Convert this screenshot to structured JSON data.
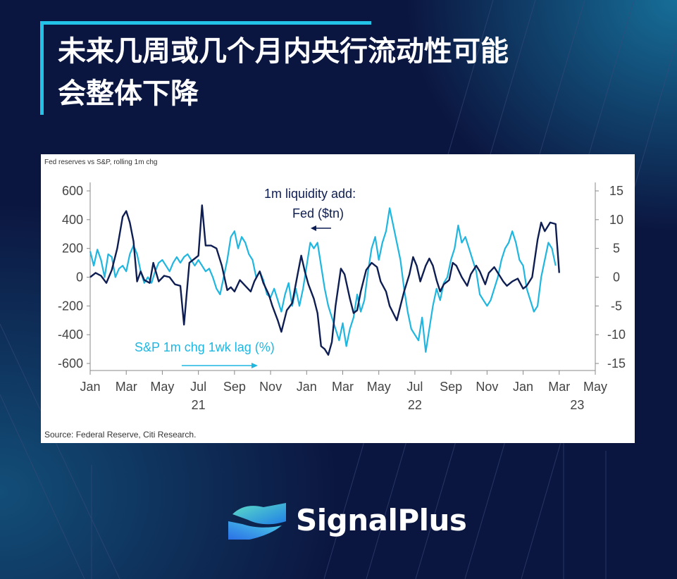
{
  "headline": {
    "line1": "未来几周或几个月内央行流动性可能",
    "line2": "会整体下降"
  },
  "brand": {
    "name": "SignalPlus",
    "colors": {
      "background": "#0b1640",
      "accent": "#22c3e6"
    }
  },
  "chart_data": {
    "type": "line",
    "title": "Fed reserves vs S&P, rolling 1m chg",
    "source": "Source: Federal Reserve, Citi Research.",
    "x_ticks": [
      "Jan",
      "Mar",
      "May",
      "Jul",
      "Sep",
      "Nov",
      "Jan",
      "Mar",
      "May",
      "Jul",
      "Sep",
      "Nov",
      "Jan",
      "Mar",
      "May"
    ],
    "year_labels": [
      {
        "label": "21",
        "month_index": 6
      },
      {
        "label": "22",
        "month_index": 18
      },
      {
        "label": "23",
        "month_index": 27
      }
    ],
    "x_range_months": [
      0,
      28
    ],
    "left_axis": {
      "ticks": [
        "600",
        "400",
        "200",
        "0",
        "-200",
        "-400",
        "-600"
      ],
      "ylim": [
        -600,
        600
      ]
    },
    "right_axis": {
      "ticks": [
        "15",
        "10",
        "5",
        "0",
        "-5",
        "-10",
        "-15"
      ],
      "ylim": [
        -15,
        15
      ]
    },
    "annotations": {
      "fed": {
        "text1": "1m liquidity add:",
        "text2": "Fed ($tn)"
      },
      "sp": {
        "text": "S&P 1m chg 1wk lag (%)"
      }
    },
    "series": [
      {
        "name": "1m liquidity add: Fed ($tn)",
        "axis": "left",
        "color": "#0e1d52",
        "points": [
          [
            0,
            0
          ],
          [
            0.3,
            30
          ],
          [
            0.6,
            10
          ],
          [
            0.9,
            -40
          ],
          [
            1.2,
            50
          ],
          [
            1.5,
            200
          ],
          [
            1.8,
            420
          ],
          [
            2.0,
            460
          ],
          [
            2.2,
            380
          ],
          [
            2.4,
            250
          ],
          [
            2.6,
            -30
          ],
          [
            2.8,
            40
          ],
          [
            3.0,
            -20
          ],
          [
            3.3,
            -40
          ],
          [
            3.5,
            100
          ],
          [
            3.8,
            -30
          ],
          [
            4.1,
            10
          ],
          [
            4.4,
            0
          ],
          [
            4.7,
            -50
          ],
          [
            5.0,
            -60
          ],
          [
            5.2,
            -330
          ],
          [
            5.5,
            100
          ],
          [
            5.8,
            130
          ],
          [
            6.0,
            150
          ],
          [
            6.2,
            500
          ],
          [
            6.4,
            220
          ],
          [
            6.7,
            220
          ],
          [
            7.0,
            200
          ],
          [
            7.3,
            80
          ],
          [
            7.6,
            -90
          ],
          [
            7.8,
            -70
          ],
          [
            8.0,
            -100
          ],
          [
            8.3,
            -20
          ],
          [
            8.6,
            -60
          ],
          [
            8.9,
            -100
          ],
          [
            9.1,
            -30
          ],
          [
            9.4,
            40
          ],
          [
            9.6,
            -40
          ],
          [
            9.9,
            -120
          ],
          [
            10.1,
            -200
          ],
          [
            10.4,
            -300
          ],
          [
            10.6,
            -380
          ],
          [
            10.9,
            -230
          ],
          [
            11.2,
            -180
          ],
          [
            11.5,
            20
          ],
          [
            11.7,
            150
          ],
          [
            11.9,
            40
          ],
          [
            12.1,
            -50
          ],
          [
            12.4,
            -150
          ],
          [
            12.6,
            -250
          ],
          [
            12.8,
            -480
          ],
          [
            13.0,
            -500
          ],
          [
            13.2,
            -540
          ],
          [
            13.4,
            -450
          ],
          [
            13.6,
            -200
          ],
          [
            13.9,
            60
          ],
          [
            14.1,
            20
          ],
          [
            14.4,
            -150
          ],
          [
            14.6,
            -250
          ],
          [
            14.8,
            -230
          ],
          [
            15.0,
            -100
          ],
          [
            15.3,
            50
          ],
          [
            15.6,
            100
          ],
          [
            15.9,
            70
          ],
          [
            16.1,
            -30
          ],
          [
            16.4,
            -100
          ],
          [
            16.6,
            -200
          ],
          [
            16.8,
            -250
          ],
          [
            17.0,
            -300
          ],
          [
            17.2,
            -200
          ],
          [
            17.4,
            -100
          ],
          [
            17.7,
            20
          ],
          [
            17.9,
            140
          ],
          [
            18.1,
            80
          ],
          [
            18.3,
            -30
          ],
          [
            18.6,
            80
          ],
          [
            18.8,
            130
          ],
          [
            19.0,
            80
          ],
          [
            19.2,
            -20
          ],
          [
            19.4,
            -100
          ],
          [
            19.6,
            -50
          ],
          [
            19.9,
            -20
          ],
          [
            20.1,
            100
          ],
          [
            20.3,
            80
          ],
          [
            20.6,
            0
          ],
          [
            20.9,
            -60
          ],
          [
            21.1,
            20
          ],
          [
            21.4,
            80
          ],
          [
            21.6,
            40
          ],
          [
            21.9,
            -50
          ],
          [
            22.1,
            30
          ],
          [
            22.4,
            70
          ],
          [
            22.6,
            30
          ],
          [
            22.9,
            -30
          ],
          [
            23.1,
            -60
          ],
          [
            23.4,
            -30
          ],
          [
            23.7,
            -10
          ],
          [
            24.0,
            -80
          ],
          [
            24.2,
            -60
          ],
          [
            24.5,
            0
          ],
          [
            24.8,
            260
          ],
          [
            25.0,
            380
          ],
          [
            25.2,
            320
          ],
          [
            25.5,
            380
          ],
          [
            25.8,
            370
          ],
          [
            25.95,
            120
          ],
          [
            26.0,
            30
          ]
        ]
      },
      {
        "name": "S&P 1m chg 1wk lag (%)",
        "axis": "right",
        "color": "#1fb6e0",
        "points": [
          [
            0,
            4.5
          ],
          [
            0.2,
            2
          ],
          [
            0.4,
            4.8
          ],
          [
            0.6,
            3
          ],
          [
            0.8,
            0
          ],
          [
            1.0,
            4
          ],
          [
            1.2,
            3.5
          ],
          [
            1.4,
            0
          ],
          [
            1.6,
            1.5
          ],
          [
            1.8,
            2
          ],
          [
            2.0,
            1
          ],
          [
            2.2,
            4
          ],
          [
            2.4,
            5.5
          ],
          [
            2.6,
            4
          ],
          [
            2.8,
            1
          ],
          [
            3.0,
            -1
          ],
          [
            3.2,
            0
          ],
          [
            3.4,
            -1
          ],
          [
            3.6,
            1
          ],
          [
            3.8,
            2.5
          ],
          [
            4.0,
            3
          ],
          [
            4.2,
            2
          ],
          [
            4.4,
            1
          ],
          [
            4.6,
            2.5
          ],
          [
            4.8,
            3.5
          ],
          [
            5.0,
            2.5
          ],
          [
            5.2,
            3.5
          ],
          [
            5.4,
            4
          ],
          [
            5.6,
            3
          ],
          [
            5.8,
            2
          ],
          [
            6.0,
            3
          ],
          [
            6.2,
            2
          ],
          [
            6.4,
            1
          ],
          [
            6.6,
            1.5
          ],
          [
            6.8,
            0
          ],
          [
            7.0,
            -2
          ],
          [
            7.2,
            -3
          ],
          [
            7.4,
            0
          ],
          [
            7.6,
            3
          ],
          [
            7.8,
            7
          ],
          [
            8.0,
            8
          ],
          [
            8.2,
            5
          ],
          [
            8.4,
            7
          ],
          [
            8.6,
            6
          ],
          [
            8.8,
            4
          ],
          [
            9.0,
            3
          ],
          [
            9.2,
            0
          ],
          [
            9.4,
            1
          ],
          [
            9.6,
            -0.5
          ],
          [
            9.8,
            -3
          ],
          [
            10.0,
            -3.5
          ],
          [
            10.2,
            -2
          ],
          [
            10.4,
            -4
          ],
          [
            10.6,
            -6
          ],
          [
            10.8,
            -3
          ],
          [
            11.0,
            -1
          ],
          [
            11.2,
            -5
          ],
          [
            11.4,
            -2
          ],
          [
            11.6,
            -5
          ],
          [
            11.8,
            -2
          ],
          [
            12.0,
            2
          ],
          [
            12.2,
            6
          ],
          [
            12.4,
            5
          ],
          [
            12.6,
            6
          ],
          [
            12.8,
            2
          ],
          [
            13.0,
            -2
          ],
          [
            13.2,
            -5
          ],
          [
            13.4,
            -7
          ],
          [
            13.6,
            -9
          ],
          [
            13.8,
            -11
          ],
          [
            14.0,
            -8
          ],
          [
            14.2,
            -12
          ],
          [
            14.4,
            -9
          ],
          [
            14.6,
            -7
          ],
          [
            14.8,
            -3
          ],
          [
            15.0,
            -6
          ],
          [
            15.2,
            -4
          ],
          [
            15.4,
            1
          ],
          [
            15.6,
            5
          ],
          [
            15.8,
            7
          ],
          [
            16.0,
            3
          ],
          [
            16.2,
            6
          ],
          [
            16.4,
            8
          ],
          [
            16.6,
            12
          ],
          [
            16.8,
            9
          ],
          [
            17.0,
            6
          ],
          [
            17.2,
            3
          ],
          [
            17.4,
            -2
          ],
          [
            17.6,
            -6
          ],
          [
            17.8,
            -9
          ],
          [
            18.0,
            -10
          ],
          [
            18.2,
            -11
          ],
          [
            18.4,
            -7
          ],
          [
            18.6,
            -13
          ],
          [
            18.8,
            -9
          ],
          [
            19.0,
            -5
          ],
          [
            19.2,
            -2
          ],
          [
            19.4,
            -4
          ],
          [
            19.6,
            -1
          ],
          [
            19.8,
            0
          ],
          [
            20.0,
            3
          ],
          [
            20.2,
            5
          ],
          [
            20.4,
            9
          ],
          [
            20.6,
            6
          ],
          [
            20.8,
            7
          ],
          [
            21.0,
            5
          ],
          [
            21.2,
            3
          ],
          [
            21.4,
            1
          ],
          [
            21.6,
            -3
          ],
          [
            21.8,
            -4
          ],
          [
            22.0,
            -5
          ],
          [
            22.2,
            -4
          ],
          [
            22.4,
            -2
          ],
          [
            22.6,
            0
          ],
          [
            22.8,
            3
          ],
          [
            23.0,
            5
          ],
          [
            23.2,
            6
          ],
          [
            23.4,
            8
          ],
          [
            23.6,
            6
          ],
          [
            23.8,
            3
          ],
          [
            24.0,
            2
          ],
          [
            24.2,
            -2
          ],
          [
            24.4,
            -4
          ],
          [
            24.6,
            -6
          ],
          [
            24.8,
            -5
          ],
          [
            25.0,
            0
          ],
          [
            25.2,
            3
          ],
          [
            25.4,
            6
          ],
          [
            25.6,
            5
          ],
          [
            25.8,
            2
          ]
        ]
      }
    ]
  }
}
